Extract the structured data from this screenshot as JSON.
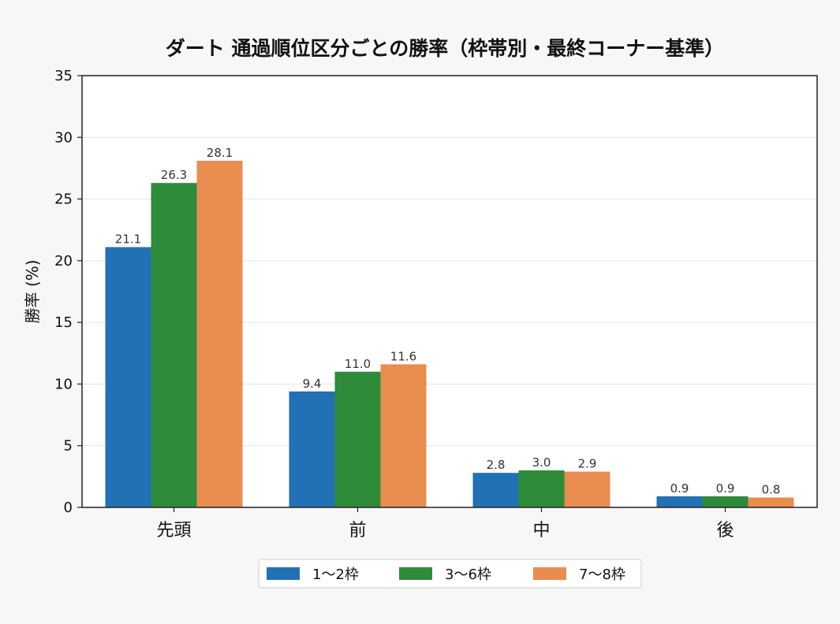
{
  "chart_data": {
    "type": "bar",
    "title": "ダート 通過順位区分ごとの勝率（枠帯別・最終コーナー基準）",
    "xlabel": "",
    "ylabel": "勝率 (%)",
    "categories": [
      "先頭",
      "前",
      "中",
      "後"
    ],
    "series": [
      {
        "name": "1〜2枠",
        "color": "#2271b5",
        "values": [
          21.1,
          9.4,
          2.8,
          0.9
        ]
      },
      {
        "name": "3〜6枠",
        "color": "#2e8b3a",
        "values": [
          26.3,
          11.0,
          3.0,
          0.9
        ]
      },
      {
        "name": "7〜8枠",
        "color": "#e98c50",
        "values": [
          28.1,
          11.6,
          2.9,
          0.8
        ]
      }
    ],
    "ylim": [
      0,
      35
    ],
    "yticks": [
      0,
      5,
      10,
      15,
      20,
      25,
      30,
      35
    ],
    "grid": true,
    "legend_position": "bottom-center"
  }
}
